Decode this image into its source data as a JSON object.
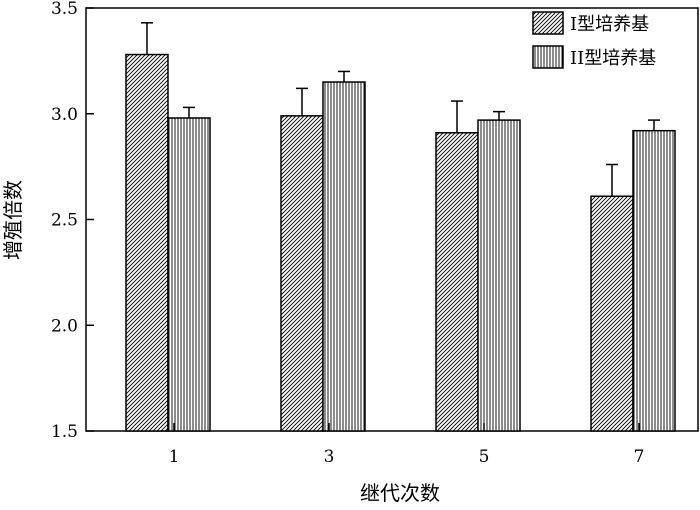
{
  "chart_data": {
    "type": "bar",
    "categories": [
      "1",
      "3",
      "5",
      "7"
    ],
    "series": [
      {
        "name": "I型培养基",
        "values": [
          3.28,
          2.99,
          2.91,
          2.61
        ],
        "errors": [
          0.15,
          0.13,
          0.15,
          0.15
        ],
        "pattern": "diagonal-hatch",
        "color": "#000000"
      },
      {
        "name": "II型培养基",
        "values": [
          2.98,
          3.15,
          2.97,
          2.92
        ],
        "errors": [
          0.05,
          0.05,
          0.04,
          0.05
        ],
        "pattern": "vertical-hatch",
        "color": "#000000"
      }
    ],
    "xlabel": "继代次数",
    "ylabel": "增殖倍数",
    "ylim": [
      1.5,
      3.5
    ],
    "yticks": [
      "1.5",
      "2.0",
      "2.5",
      "3.0",
      "3.5"
    ],
    "grid": false,
    "legend_position": "top-right"
  }
}
